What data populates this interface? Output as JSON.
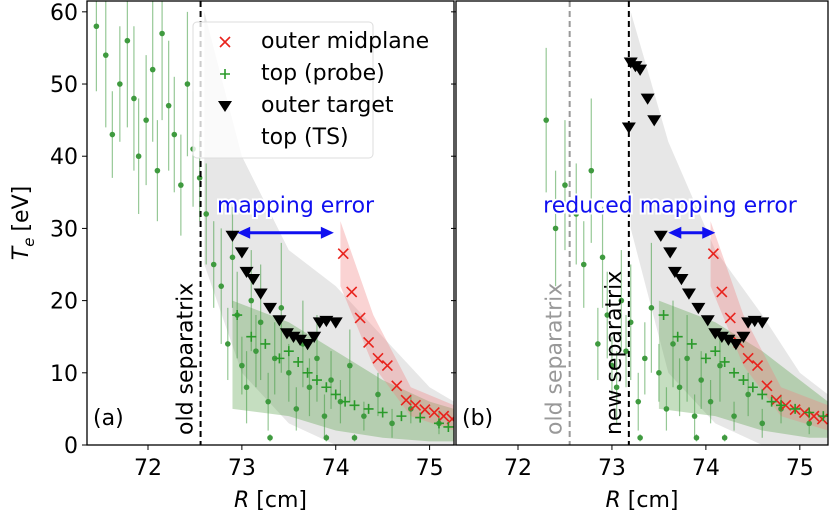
{
  "chart_data": [
    {
      "type": "scatter",
      "panel_label": "(a)",
      "xlabel": {
        "symbol": "R",
        "unit": "[cm]"
      },
      "ylabel": {
        "symbol": "T",
        "subscript": "e",
        "unit": "[eV]"
      },
      "xlim": [
        71.35,
        75.26
      ],
      "ylim": [
        0,
        61.5
      ],
      "xticks": [
        72,
        73,
        74,
        75
      ],
      "yticks": [
        0,
        10,
        20,
        30,
        40,
        50,
        60
      ],
      "show_ytick_labels": true,
      "legend": "upper center",
      "bands": [
        {
          "color": "#bbbbbb",
          "x": [
            72.6,
            73,
            73.5,
            74,
            74.5,
            75,
            75.26
          ],
          "lower": [
            25,
            10,
            3,
            0,
            0,
            0,
            0
          ],
          "upper": [
            60,
            40,
            27,
            22,
            15,
            8,
            6
          ]
        },
        {
          "color": "#5aa04a",
          "x": [
            72.9,
            73.5,
            74,
            74.5,
            75,
            75.26
          ],
          "lower": [
            5,
            4,
            2,
            1,
            0.5,
            0.5
          ],
          "upper": [
            20,
            17,
            13,
            9,
            6,
            5
          ]
        },
        {
          "color": "#f08080",
          "x": [
            74.05,
            74.4,
            74.8,
            75.26
          ],
          "lower": [
            22,
            11,
            4,
            2
          ],
          "upper": [
            31,
            18,
            8,
            5.5
          ]
        }
      ],
      "series": [
        {
          "name": "outer midplane",
          "marker": "x",
          "color": "#e8231d",
          "x": [
            74.08,
            74.17,
            74.26,
            74.35,
            74.45,
            74.55,
            74.65,
            74.75,
            74.85,
            74.95,
            75.05,
            75.15,
            75.24
          ],
          "values": [
            26.5,
            21.2,
            17.6,
            14.2,
            12,
            11,
            8.2,
            6.2,
            5.5,
            4.9,
            4.5,
            4,
            3.6
          ]
        },
        {
          "name": "top (probe)",
          "marker": "+",
          "color": "#2a9a2a",
          "x": [
            72.95,
            73.1,
            73.25,
            73.4,
            73.5,
            73.6,
            73.7,
            73.8,
            73.9,
            74.0,
            74.1,
            74.2,
            74.35,
            74.5,
            74.7,
            74.9,
            75.1,
            75.2
          ],
          "values": [
            18,
            15,
            14,
            12,
            13,
            11.5,
            10,
            9,
            8,
            7,
            6,
            5.5,
            5,
            4.5,
            4,
            3.8,
            3,
            2.5
          ]
        },
        {
          "name": "outer target",
          "marker": "v",
          "color": "#000000",
          "x": [
            72.9,
            73.0,
            73.05,
            73.12,
            73.2,
            73.3,
            73.4,
            73.48,
            73.55,
            73.62,
            73.7,
            73.77,
            73.83,
            73.9,
            74.0
          ],
          "values": [
            29,
            26.7,
            24,
            23,
            21,
            19,
            17.3,
            15.5,
            15,
            14.6,
            14,
            15,
            17,
            17.2,
            17
          ]
        },
        {
          "name": "top (TS)",
          "marker": "o",
          "color": "#3f9a3f",
          "x": [
            71.45,
            71.55,
            71.62,
            71.7,
            71.78,
            71.85,
            71.9,
            71.98,
            72.05,
            72.1,
            72.15,
            72.22,
            72.28,
            72.35,
            72.42,
            72.48,
            72.55,
            72.62,
            72.7,
            72.78,
            72.85,
            72.9,
            72.95,
            73.0,
            73.05,
            73.1,
            73.15,
            73.2,
            73.28,
            73.35,
            73.42,
            73.5,
            73.58,
            73.65,
            73.72,
            73.8,
            73.88,
            73.95,
            74.05,
            74.15,
            74.3,
            74.45,
            74.6,
            74.8,
            75.1,
            73.3,
            73.9,
            74.2
          ],
          "values": [
            58,
            54,
            43,
            50,
            56,
            48,
            40,
            45,
            52,
            38,
            57,
            47,
            43,
            36,
            50,
            41,
            37,
            32,
            25,
            22,
            14,
            26,
            18,
            11,
            8,
            20,
            13,
            17,
            6,
            12,
            19,
            10,
            5,
            14,
            8,
            12,
            4,
            9,
            6,
            11,
            4,
            7,
            3,
            5,
            3,
            1,
            1,
            1
          ],
          "errors": [
            9,
            10,
            6,
            8,
            12,
            10,
            8,
            9,
            10,
            7,
            12,
            9,
            8,
            7,
            10,
            8,
            6,
            7,
            6,
            8,
            5,
            7,
            6,
            4,
            5,
            7,
            5,
            8,
            4,
            5,
            9,
            4,
            3,
            6,
            4,
            6,
            3,
            4,
            3,
            5,
            2,
            3,
            2,
            2,
            1.5,
            0.5,
            0.5,
            0.5
          ]
        }
      ],
      "vlines": [
        {
          "x": 72.56,
          "label": "old separatrix",
          "color": "#000000"
        }
      ],
      "arrows": [
        {
          "x1": 72.95,
          "x2": 73.98,
          "y": 29.4,
          "label": "mapping error",
          "color": "#1010f0"
        }
      ]
    },
    {
      "type": "scatter",
      "panel_label": "(b)",
      "xlabel": {
        "symbol": "R",
        "unit": "[cm]"
      },
      "xlim": [
        71.34,
        75.3
      ],
      "ylim": [
        0,
        61.5
      ],
      "xticks": [
        72,
        73,
        74,
        75
      ],
      "yticks": [
        0,
        10,
        20,
        30,
        40,
        50,
        60
      ],
      "show_ytick_labels": false,
      "bands": [
        {
          "color": "#bbbbbb",
          "x": [
            73.2,
            73.6,
            74.1,
            74.6,
            75.0,
            75.3
          ],
          "lower": [
            30,
            10,
            3,
            0,
            0,
            0
          ],
          "upper": [
            60,
            42,
            27,
            18,
            10,
            7
          ]
        },
        {
          "color": "#5aa04a",
          "x": [
            73.5,
            74.1,
            74.6,
            75.1,
            75.3
          ],
          "lower": [
            5,
            4,
            2,
            1,
            1
          ],
          "upper": [
            20,
            17,
            13,
            8,
            6
          ]
        },
        {
          "color": "#f08080",
          "x": [
            74.05,
            74.4,
            74.8,
            75.3
          ],
          "lower": [
            22,
            11,
            4,
            2
          ],
          "upper": [
            31,
            18,
            8,
            5.5
          ]
        }
      ],
      "series": [
        {
          "name": "outer midplane",
          "marker": "x",
          "color": "#e8231d",
          "x": [
            74.08,
            74.17,
            74.26,
            74.35,
            74.45,
            74.55,
            74.65,
            74.75,
            74.85,
            74.95,
            75.05,
            75.15,
            75.24
          ],
          "values": [
            26.5,
            21.2,
            17.6,
            14.2,
            12,
            11,
            8.2,
            6.2,
            5.5,
            4.9,
            4.5,
            4,
            3.6
          ]
        },
        {
          "name": "top (probe)",
          "marker": "+",
          "color": "#2a9a2a",
          "x": [
            73.55,
            73.7,
            73.85,
            74.0,
            74.1,
            74.2,
            74.3,
            74.4,
            74.5,
            74.6,
            74.7,
            74.8,
            74.95,
            75.1,
            75.25
          ],
          "values": [
            18,
            15,
            14,
            12,
            13,
            11.5,
            10,
            9,
            8,
            7,
            6,
            5.5,
            5,
            4.5,
            4
          ]
        },
        {
          "name": "outer target",
          "marker": "v",
          "color": "#000000",
          "x": [
            73.2,
            73.25,
            73.3,
            73.38,
            73.45,
            73.18,
            73.52,
            73.62,
            73.67,
            73.74,
            73.82,
            73.92,
            74.02,
            74.1,
            74.17,
            74.24,
            74.32,
            74.4,
            74.45,
            74.52,
            74.6
          ],
          "values": [
            53,
            52.5,
            52,
            48,
            45,
            44,
            29,
            26.7,
            24,
            23,
            21,
            19,
            17.3,
            15.5,
            15,
            14.6,
            14,
            15,
            17,
            17.2,
            17
          ]
        },
        {
          "name": "top (TS)",
          "marker": "o",
          "color": "#3f9a3f",
          "x": [
            72.3,
            72.4,
            72.5,
            72.62,
            72.7,
            72.78,
            72.85,
            72.9,
            72.95,
            73.0,
            73.05,
            73.1,
            73.15,
            73.2,
            73.28,
            73.35,
            73.42,
            73.5,
            73.58,
            73.65,
            73.72,
            73.8,
            73.88,
            73.95,
            74.05,
            74.15,
            74.3,
            74.45,
            74.6,
            74.8,
            75.1,
            73.3,
            73.9,
            74.2
          ],
          "values": [
            45,
            30,
            36,
            32,
            25,
            38,
            14,
            26,
            18,
            11,
            8,
            20,
            13,
            17,
            6,
            12,
            19,
            10,
            5,
            14,
            8,
            12,
            4,
            9,
            6,
            11,
            4,
            7,
            3,
            5,
            3,
            1,
            1,
            1
          ],
          "errors": [
            10,
            8,
            9,
            7,
            6,
            10,
            5,
            7,
            6,
            4,
            5,
            7,
            5,
            8,
            4,
            5,
            9,
            4,
            3,
            6,
            4,
            6,
            3,
            4,
            3,
            5,
            2,
            3,
            2,
            2,
            1.5,
            0.5,
            0.5,
            0.5
          ]
        }
      ],
      "vlines": [
        {
          "x": 72.55,
          "label": "old separatrix",
          "color": "#999999"
        },
        {
          "x": 73.18,
          "label": "new separatrix",
          "color": "#000000"
        }
      ],
      "arrows": [
        {
          "x1": 73.6,
          "x2": 74.1,
          "y": 29.4,
          "label": "reduced mapping error",
          "color": "#1010f0"
        }
      ]
    }
  ]
}
